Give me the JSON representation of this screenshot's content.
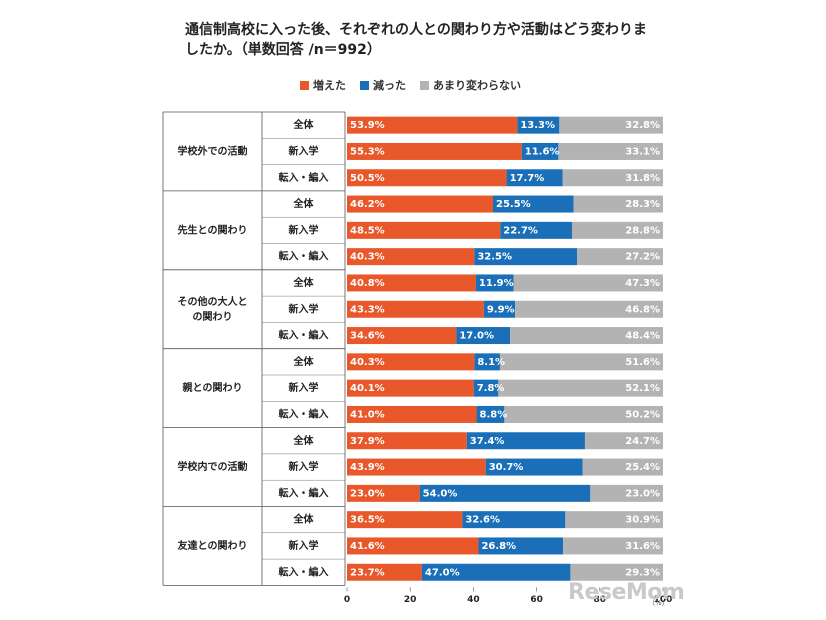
{
  "title": "通信制高校に入った後、それぞれの人との関わり方や活動はどう変わりましたか。（単数回答 /n＝992）",
  "legend": [
    {
      "label": "増えた",
      "color": "#e8582a"
    },
    {
      "label": "減った",
      "color": "#1a6fb8"
    },
    {
      "label": "あまり変わらない",
      "color": "#b3b3b3"
    }
  ],
  "watermark": "ReseMom",
  "unit_label": "（%）",
  "chart_data": {
    "type": "bar",
    "orientation": "horizontal",
    "stacked": true,
    "title": "通信制高校に入った後、それぞれの人との関わり方や活動はどう変わりましたか。（単数回答 /n＝992）",
    "xlim": [
      0,
      100
    ],
    "xticks": [
      0,
      20,
      40,
      60,
      80,
      100
    ],
    "series_names": [
      "増えた",
      "減った",
      "あまり変わらない"
    ],
    "groups": [
      {
        "name": "学校外での活動",
        "rows": [
          {
            "label": "全体",
            "values": [
              53.9,
              13.3,
              32.8
            ]
          },
          {
            "label": "新入学",
            "values": [
              55.3,
              11.6,
              33.1
            ]
          },
          {
            "label": "転入・編入",
            "values": [
              50.5,
              17.7,
              31.8
            ]
          }
        ]
      },
      {
        "name": "先生との関わり",
        "rows": [
          {
            "label": "全体",
            "values": [
              46.2,
              25.5,
              28.3
            ]
          },
          {
            "label": "新入学",
            "values": [
              48.5,
              22.7,
              28.8
            ]
          },
          {
            "label": "転入・編入",
            "values": [
              40.3,
              32.5,
              27.2
            ]
          }
        ]
      },
      {
        "name": "その他の大人との関わり",
        "name_lines": [
          "その他の大人と",
          "の関わり"
        ],
        "rows": [
          {
            "label": "全体",
            "values": [
              40.8,
              11.9,
              47.3
            ]
          },
          {
            "label": "新入学",
            "values": [
              43.3,
              9.9,
              46.8
            ]
          },
          {
            "label": "転入・編入",
            "values": [
              34.6,
              17.0,
              48.4
            ]
          }
        ]
      },
      {
        "name": "親との関わり",
        "rows": [
          {
            "label": "全体",
            "values": [
              40.3,
              8.1,
              51.6
            ]
          },
          {
            "label": "新入学",
            "values": [
              40.1,
              7.8,
              52.1
            ]
          },
          {
            "label": "転入・編入",
            "values": [
              41.0,
              8.8,
              50.2
            ]
          }
        ]
      },
      {
        "name": "学校内での活動",
        "rows": [
          {
            "label": "全体",
            "values": [
              37.9,
              37.4,
              24.7
            ]
          },
          {
            "label": "新入学",
            "values": [
              43.9,
              30.7,
              25.4
            ]
          },
          {
            "label": "転入・編入",
            "values": [
              23.0,
              54.0,
              23.0
            ]
          }
        ]
      },
      {
        "name": "友達との関わり",
        "rows": [
          {
            "label": "全体",
            "values": [
              36.5,
              32.6,
              30.9
            ]
          },
          {
            "label": "新入学",
            "values": [
              41.6,
              26.8,
              31.6
            ]
          },
          {
            "label": "転入・編入",
            "values": [
              23.7,
              47.0,
              29.3
            ]
          }
        ]
      }
    ]
  }
}
